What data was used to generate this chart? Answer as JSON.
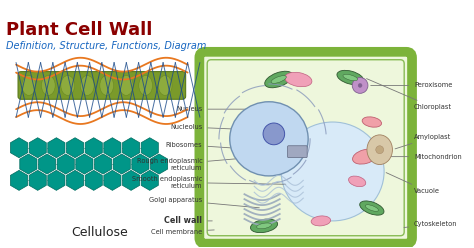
{
  "title": "Plant Cell Wall",
  "subtitle": "Definition, Structure, Functions, Diagram",
  "title_color": "#8B0000",
  "subtitle_color": "#1565C0",
  "bg_color": "#ffffff",
  "cellulose_label": "Cellulose",
  "cellulose_color": "#009688",
  "hex_ec": "#006B5E",
  "fiber_orange": "#E87820",
  "fiber_blue": "#1A4A8A",
  "fiber_green_dark": "#5A7A1A",
  "fiber_green_mid": "#7A9A2A",
  "fiber_green_light": "#9AB84A",
  "cell_wall_edge": "#7CB33A",
  "cell_wall_fill": "#EEF7DC",
  "cell_interior": "#F5FAF0",
  "nucleus_fill": "#C0D8F0",
  "nucleus_edge": "#7090B0",
  "nucleolus_fill": "#8898CC",
  "nucleolus_edge": "#4455AA",
  "er_color": "#8898BB",
  "golgi_color": "#9AAABB",
  "vacuole_fill": "#D8EAF8",
  "vacuole_edge": "#A0C0D8",
  "mito_fill": "#F0A0A8",
  "mito_edge": "#C06070",
  "chloro_fill": "#60A860",
  "chloro_edge": "#305830",
  "peroxisome_fill": "#C090C8",
  "peroxisome_edge": "#806090",
  "amyloplast_fill": "#D8C8A8",
  "amyloplast_edge": "#A08060",
  "pink_fill": "#F0A0B8",
  "pink_edge": "#C06080",
  "label_color": "#333333",
  "label_fs": 4.8,
  "line_color": "#777777"
}
